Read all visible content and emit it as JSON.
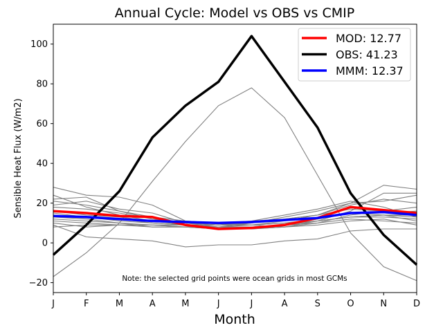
{
  "chart_data": {
    "type": "line",
    "title": "Annual Cycle: Model vs OBS vs CMIP",
    "xlabel": "Month",
    "ylabel": "Sensible Heat Flux (W/m2)",
    "categories": [
      "J",
      "F",
      "M",
      "A",
      "M",
      "J",
      "J",
      "A",
      "S",
      "O",
      "N",
      "D"
    ],
    "ylim": [
      -25,
      110
    ],
    "yticks": [
      -20,
      0,
      20,
      40,
      60,
      80,
      100
    ],
    "legend_position": "top-right",
    "note": "Note: the selected grid points were ocean grids in most GCMs",
    "series": [
      {
        "name": "OBS",
        "label": "OBS: 41.23",
        "color": "#000000",
        "values": [
          -6,
          9,
          26,
          53,
          69,
          81,
          104,
          81,
          58,
          25,
          4,
          -11
        ]
      },
      {
        "name": "MOD",
        "label": "MOD: 12.77",
        "color": "#ff0000",
        "values": [
          16,
          15,
          13.5,
          13,
          9,
          7,
          7.5,
          9,
          12.5,
          18,
          16.5,
          15
        ]
      },
      {
        "name": "MMM",
        "label": "MMM: 12.37",
        "color": "#0000ff",
        "values": [
          13.5,
          13,
          12,
          11,
          10.5,
          10,
          10.5,
          11.5,
          12.5,
          15,
          15.5,
          14
        ]
      }
    ],
    "cmip_color": "#808080",
    "cmip_models": [
      [
        -17,
        -5,
        10,
        31,
        51,
        69,
        78,
        63,
        34,
        5,
        -12,
        -19
      ],
      [
        28,
        24,
        23,
        19,
        11,
        10,
        9,
        8,
        11,
        16,
        25,
        25
      ],
      [
        9,
        3,
        2,
        1,
        -2,
        -1,
        -1,
        1,
        2,
        6,
        7,
        7
      ],
      [
        10,
        8,
        9,
        9,
        8,
        8,
        9,
        11,
        14,
        20,
        29,
        27
      ],
      [
        19,
        21,
        17,
        15,
        10,
        8,
        10,
        13,
        16,
        20,
        21,
        24
      ],
      [
        22,
        23,
        16,
        12,
        10,
        9,
        11,
        14,
        17,
        21,
        18,
        13
      ],
      [
        24,
        18,
        14,
        11,
        9,
        8,
        7,
        9,
        12,
        15,
        14,
        11
      ],
      [
        13,
        12,
        10,
        9,
        8,
        7,
        7,
        8,
        10,
        14,
        16,
        18
      ],
      [
        12,
        11,
        10,
        8,
        8,
        7,
        8,
        9,
        11,
        13,
        13,
        12
      ],
      [
        18,
        17,
        15,
        12,
        10,
        9,
        10,
        12,
        14,
        17,
        16,
        15
      ],
      [
        11,
        10,
        9,
        9,
        9,
        8,
        8,
        9,
        10,
        12,
        11,
        10
      ],
      [
        14,
        13,
        11,
        10,
        9,
        9,
        9,
        10,
        11,
        13,
        14,
        14
      ],
      [
        16,
        14,
        13,
        11,
        10,
        9,
        9,
        10,
        12,
        15,
        15,
        16
      ],
      [
        8,
        9,
        9,
        8,
        8,
        7,
        7,
        8,
        9,
        11,
        12,
        9
      ],
      [
        21,
        19,
        16,
        13,
        11,
        10,
        11,
        12,
        14,
        19,
        22,
        20
      ],
      [
        15,
        13,
        12,
        10,
        9,
        8,
        8,
        9,
        11,
        13,
        14,
        13
      ]
    ],
    "legend_order": [
      "MOD",
      "OBS",
      "MMM"
    ]
  }
}
